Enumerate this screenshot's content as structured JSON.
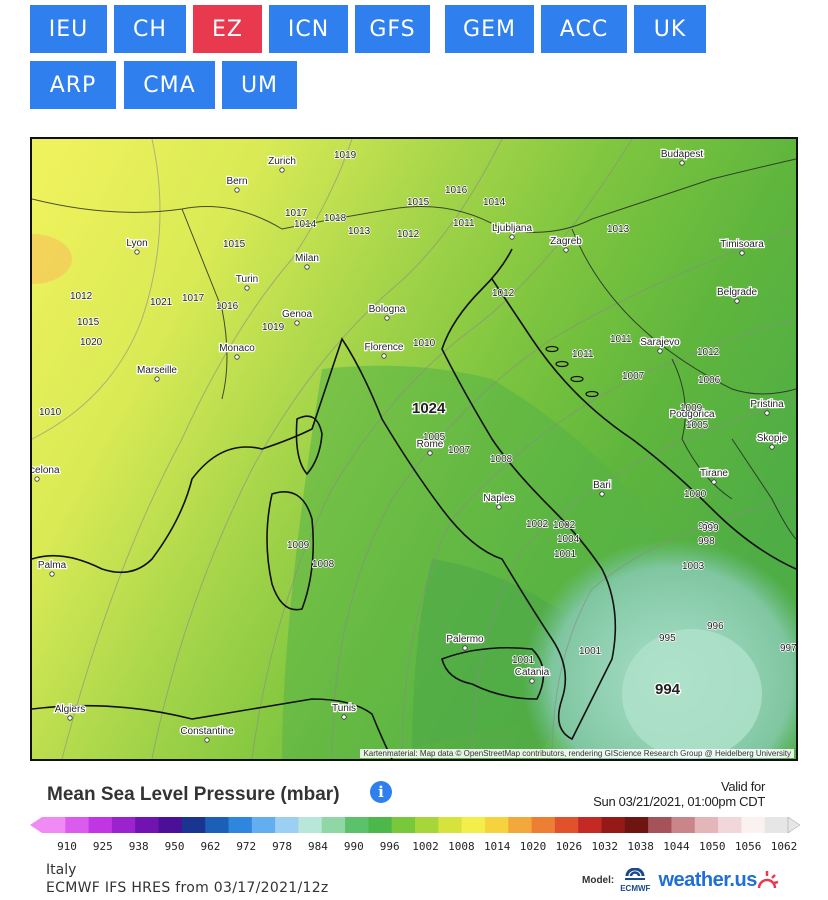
{
  "model_buttons": [
    {
      "label": "IEU",
      "active": false
    },
    {
      "label": "CH",
      "active": false
    },
    {
      "label": "EZ",
      "active": true
    },
    {
      "label": "ICN",
      "active": false
    },
    {
      "label": "GFS",
      "active": false
    },
    {
      "label": "GEM",
      "active": false
    },
    {
      "label": "ACC",
      "active": false
    },
    {
      "label": "UK",
      "active": false
    },
    {
      "label": "ARP",
      "active": false
    },
    {
      "label": "CMA",
      "active": false
    },
    {
      "label": "UM",
      "active": false
    }
  ],
  "map": {
    "cities": [
      "Budapest",
      "Zurich",
      "Bern",
      "Lyon",
      "Ljubljana",
      "Zagreb",
      "Timisoara",
      "Milan",
      "Turin",
      "Belgrade",
      "Genoa",
      "Bologna",
      "Monaco",
      "Florence",
      "Sarajevo",
      "Marseille",
      "Podgorica",
      "Pristina",
      "Skopje",
      "Rome",
      "Tirane",
      "Barcelona",
      "Bari",
      "Naples",
      "Palma",
      "Palermo",
      "Catania",
      "Algiers",
      "Tunis",
      "Constantine"
    ],
    "isobar_labels": [
      "1019",
      "1016",
      "1015",
      "1014",
      "1017",
      "1014",
      "1018",
      "1013",
      "1012",
      "1011",
      "1013",
      "1015",
      "1012",
      "1021",
      "1017",
      "1016",
      "1015",
      "1020",
      "1019",
      "1012",
      "1010",
      "1011",
      "1012",
      "1011",
      "1007",
      "1006",
      "1010",
      "1024",
      "1009",
      "1005",
      "1007",
      "1005",
      "1008",
      "1002",
      "1001",
      "1000",
      "1002",
      "1004",
      "1003",
      "1001",
      "999",
      "998",
      "1009",
      "1008",
      "995",
      "996",
      "997",
      "999",
      "1001",
      "994"
    ],
    "attribution": "Kartenmaterial: Map data © OpenStreetMap contributors, rendering GIScience Research Group @ Heidelberg University"
  },
  "legend": {
    "title": "Mean Sea Level Pressure (mbar)",
    "info_icon": "info-icon",
    "valid_for_label": "Valid for",
    "valid_time": "Sun 03/21/2021, 01:00pm CDT",
    "scale_values": [
      "910",
      "925",
      "938",
      "950",
      "962",
      "972",
      "978",
      "984",
      "990",
      "996",
      "1002",
      "1008",
      "1014",
      "1020",
      "1026",
      "1032",
      "1038",
      "1044",
      "1050",
      "1056",
      "1062"
    ],
    "scale_colors": [
      "#f08af5",
      "#dc5bef",
      "#c036e3",
      "#9b22cc",
      "#7013b0",
      "#4b0f98",
      "#1a3590",
      "#1b5fb6",
      "#2f86dd",
      "#62aef0",
      "#9bd0f3",
      "#b8e6d8",
      "#8fd7a4",
      "#5bc26b",
      "#4cb84a",
      "#78c83c",
      "#a6d63a",
      "#d6e33c",
      "#f4ee4a",
      "#f6d23c",
      "#f2a83a",
      "#ec7f34",
      "#e0512c",
      "#c42a23",
      "#951a17",
      "#6e1512",
      "#a5525a",
      "#c98589",
      "#e3b6b9",
      "#f1d7d9",
      "#fbf1f1",
      "#e6e6e6"
    ],
    "region": "Italy",
    "model_run": "ECMWF IFS HRES from 03/17/2021/12z",
    "model_label": "Model:",
    "model_logo_text": "ECMWF",
    "site_logo_text": "weather.us"
  }
}
